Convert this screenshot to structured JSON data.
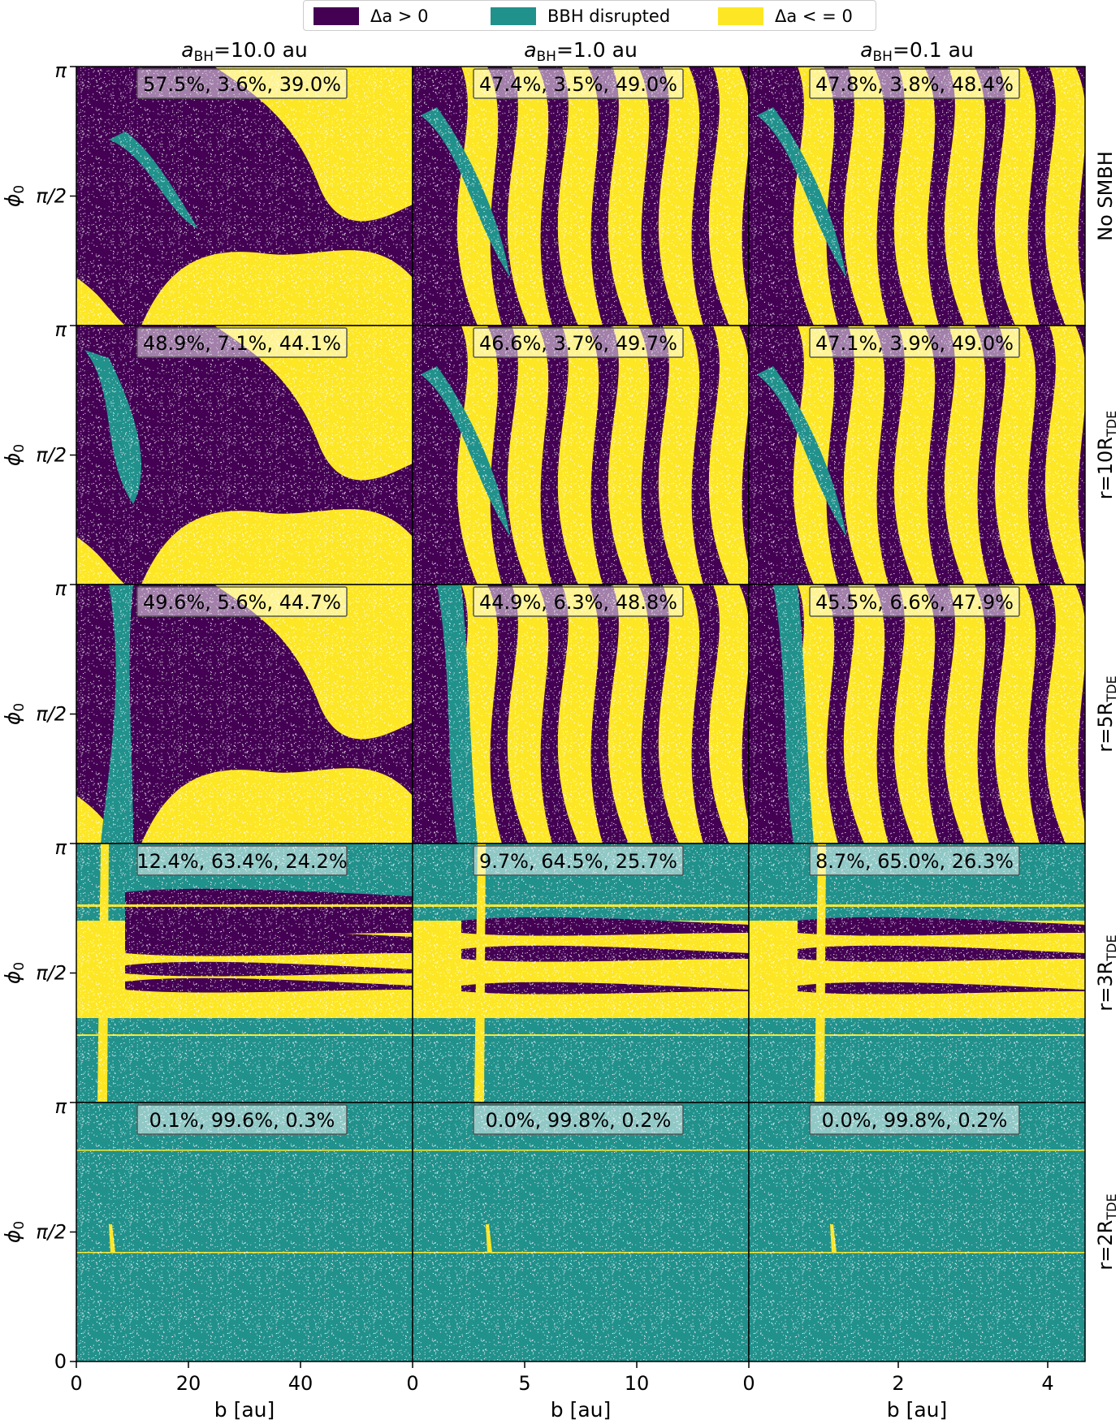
{
  "legend": [
    {
      "label": "Δa > 0",
      "color": "#440154"
    },
    {
      "label": "BBH disrupted",
      "color": "#21918c"
    },
    {
      "label": "Δa < = 0",
      "color": "#fde725"
    }
  ],
  "columns": [
    {
      "title": "a_BH=10.0 au",
      "title_main": "a",
      "title_sub": "BH",
      "title_rest": "=10.0 au"
    },
    {
      "title": "a_BH=1.0 au",
      "title_main": "a",
      "title_sub": "BH",
      "title_rest": "=1.0 au"
    },
    {
      "title": "a_BH=0.1 au",
      "title_main": "a",
      "title_sub": "BH",
      "title_rest": "=0.1 au"
    }
  ],
  "rows": [
    {
      "label": "No SMBH",
      "label_main": "No SMBH",
      "label_sub": "",
      "label_rest": ""
    },
    {
      "label": "r=10R_TDE",
      "label_main": "r=10R",
      "label_sub": "TDE",
      "label_rest": ""
    },
    {
      "label": "r=5R_TDE",
      "label_main": "r=5R",
      "label_sub": "TDE",
      "label_rest": ""
    },
    {
      "label": "r=3R_TDE",
      "label_main": "r=3R",
      "label_sub": "TDE",
      "label_rest": ""
    },
    {
      "label": "r=2R_TDE",
      "label_main": "r=2R",
      "label_sub": "TDE",
      "label_rest": ""
    }
  ],
  "x_axis": {
    "label": "b [au]",
    "ticks": [
      [
        {
          "value": 0,
          "label": "0"
        },
        {
          "value": 20,
          "label": "20"
        },
        {
          "value": 40,
          "label": "40"
        }
      ],
      [
        {
          "value": 0,
          "label": "0"
        },
        {
          "value": 5,
          "label": "5"
        },
        {
          "value": 10,
          "label": "10"
        }
      ],
      [
        {
          "value": 0,
          "label": "0"
        },
        {
          "value": 2,
          "label": "2"
        },
        {
          "value": 4,
          "label": "4"
        }
      ]
    ],
    "xlim": [
      [
        0,
        60
      ],
      [
        0,
        15
      ],
      [
        0,
        4.5
      ]
    ]
  },
  "y_axis": {
    "label": "ϕ0",
    "ticks": [
      "π",
      "π/2",
      "0"
    ],
    "ylim_label": "[0, π]"
  },
  "chart_data": {
    "type": "heatmap",
    "title": "",
    "categories": [
      "Δa > 0",
      "BBH disrupted",
      "Δa < = 0"
    ],
    "panels": [
      {
        "row": "No SMBH",
        "column": "a_BH=10.0 au",
        "annotation": "57.5%, 3.6%, 39.0%",
        "fractions": [
          57.5,
          3.6,
          39.0
        ]
      },
      {
        "row": "No SMBH",
        "column": "a_BH=1.0 au",
        "annotation": "47.4%, 3.5%, 49.0%",
        "fractions": [
          47.4,
          3.5,
          49.0
        ]
      },
      {
        "row": "No SMBH",
        "column": "a_BH=0.1 au",
        "annotation": "47.8%, 3.8%, 48.4%",
        "fractions": [
          47.8,
          3.8,
          48.4
        ]
      },
      {
        "row": "r=10R_TDE",
        "column": "a_BH=10.0 au",
        "annotation": "48.9%, 7.1%, 44.1%",
        "fractions": [
          48.9,
          7.1,
          44.1
        ]
      },
      {
        "row": "r=10R_TDE",
        "column": "a_BH=1.0 au",
        "annotation": "46.6%, 3.7%, 49.7%",
        "fractions": [
          46.6,
          3.7,
          49.7
        ]
      },
      {
        "row": "r=10R_TDE",
        "column": "a_BH=0.1 au",
        "annotation": "47.1%, 3.9%, 49.0%",
        "fractions": [
          47.1,
          3.9,
          49.0
        ]
      },
      {
        "row": "r=5R_TDE",
        "column": "a_BH=10.0 au",
        "annotation": "49.6%, 5.6%, 44.7%",
        "fractions": [
          49.6,
          5.6,
          44.7
        ]
      },
      {
        "row": "r=5R_TDE",
        "column": "a_BH=1.0 au",
        "annotation": "44.9%, 6.3%, 48.8%",
        "fractions": [
          44.9,
          6.3,
          48.8
        ]
      },
      {
        "row": "r=5R_TDE",
        "column": "a_BH=0.1 au",
        "annotation": "45.5%, 6.6%, 47.9%",
        "fractions": [
          45.5,
          6.6,
          47.9
        ]
      },
      {
        "row": "r=3R_TDE",
        "column": "a_BH=10.0 au",
        "annotation": "12.4%, 63.4%, 24.2%",
        "fractions": [
          12.4,
          63.4,
          24.2
        ]
      },
      {
        "row": "r=3R_TDE",
        "column": "a_BH=1.0 au",
        "annotation": "9.7%, 64.5%, 25.7%",
        "fractions": [
          9.7,
          64.5,
          25.7
        ]
      },
      {
        "row": "r=3R_TDE",
        "column": "a_BH=0.1 au",
        "annotation": "8.7%, 65.0%, 26.3%",
        "fractions": [
          8.7,
          65.0,
          26.3
        ]
      },
      {
        "row": "r=2R_TDE",
        "column": "a_BH=10.0 au",
        "annotation": "0.1%, 99.6%, 0.3%",
        "fractions": [
          0.1,
          99.6,
          0.3
        ]
      },
      {
        "row": "r=2R_TDE",
        "column": "a_BH=1.0 au",
        "annotation": "0.0%, 99.8%, 0.2%",
        "fractions": [
          0.0,
          99.8,
          0.2
        ]
      },
      {
        "row": "r=2R_TDE",
        "column": "a_BH=0.1 au",
        "annotation": "0.0%, 99.8%, 0.2%",
        "fractions": [
          0.0,
          99.8,
          0.2
        ]
      }
    ]
  }
}
